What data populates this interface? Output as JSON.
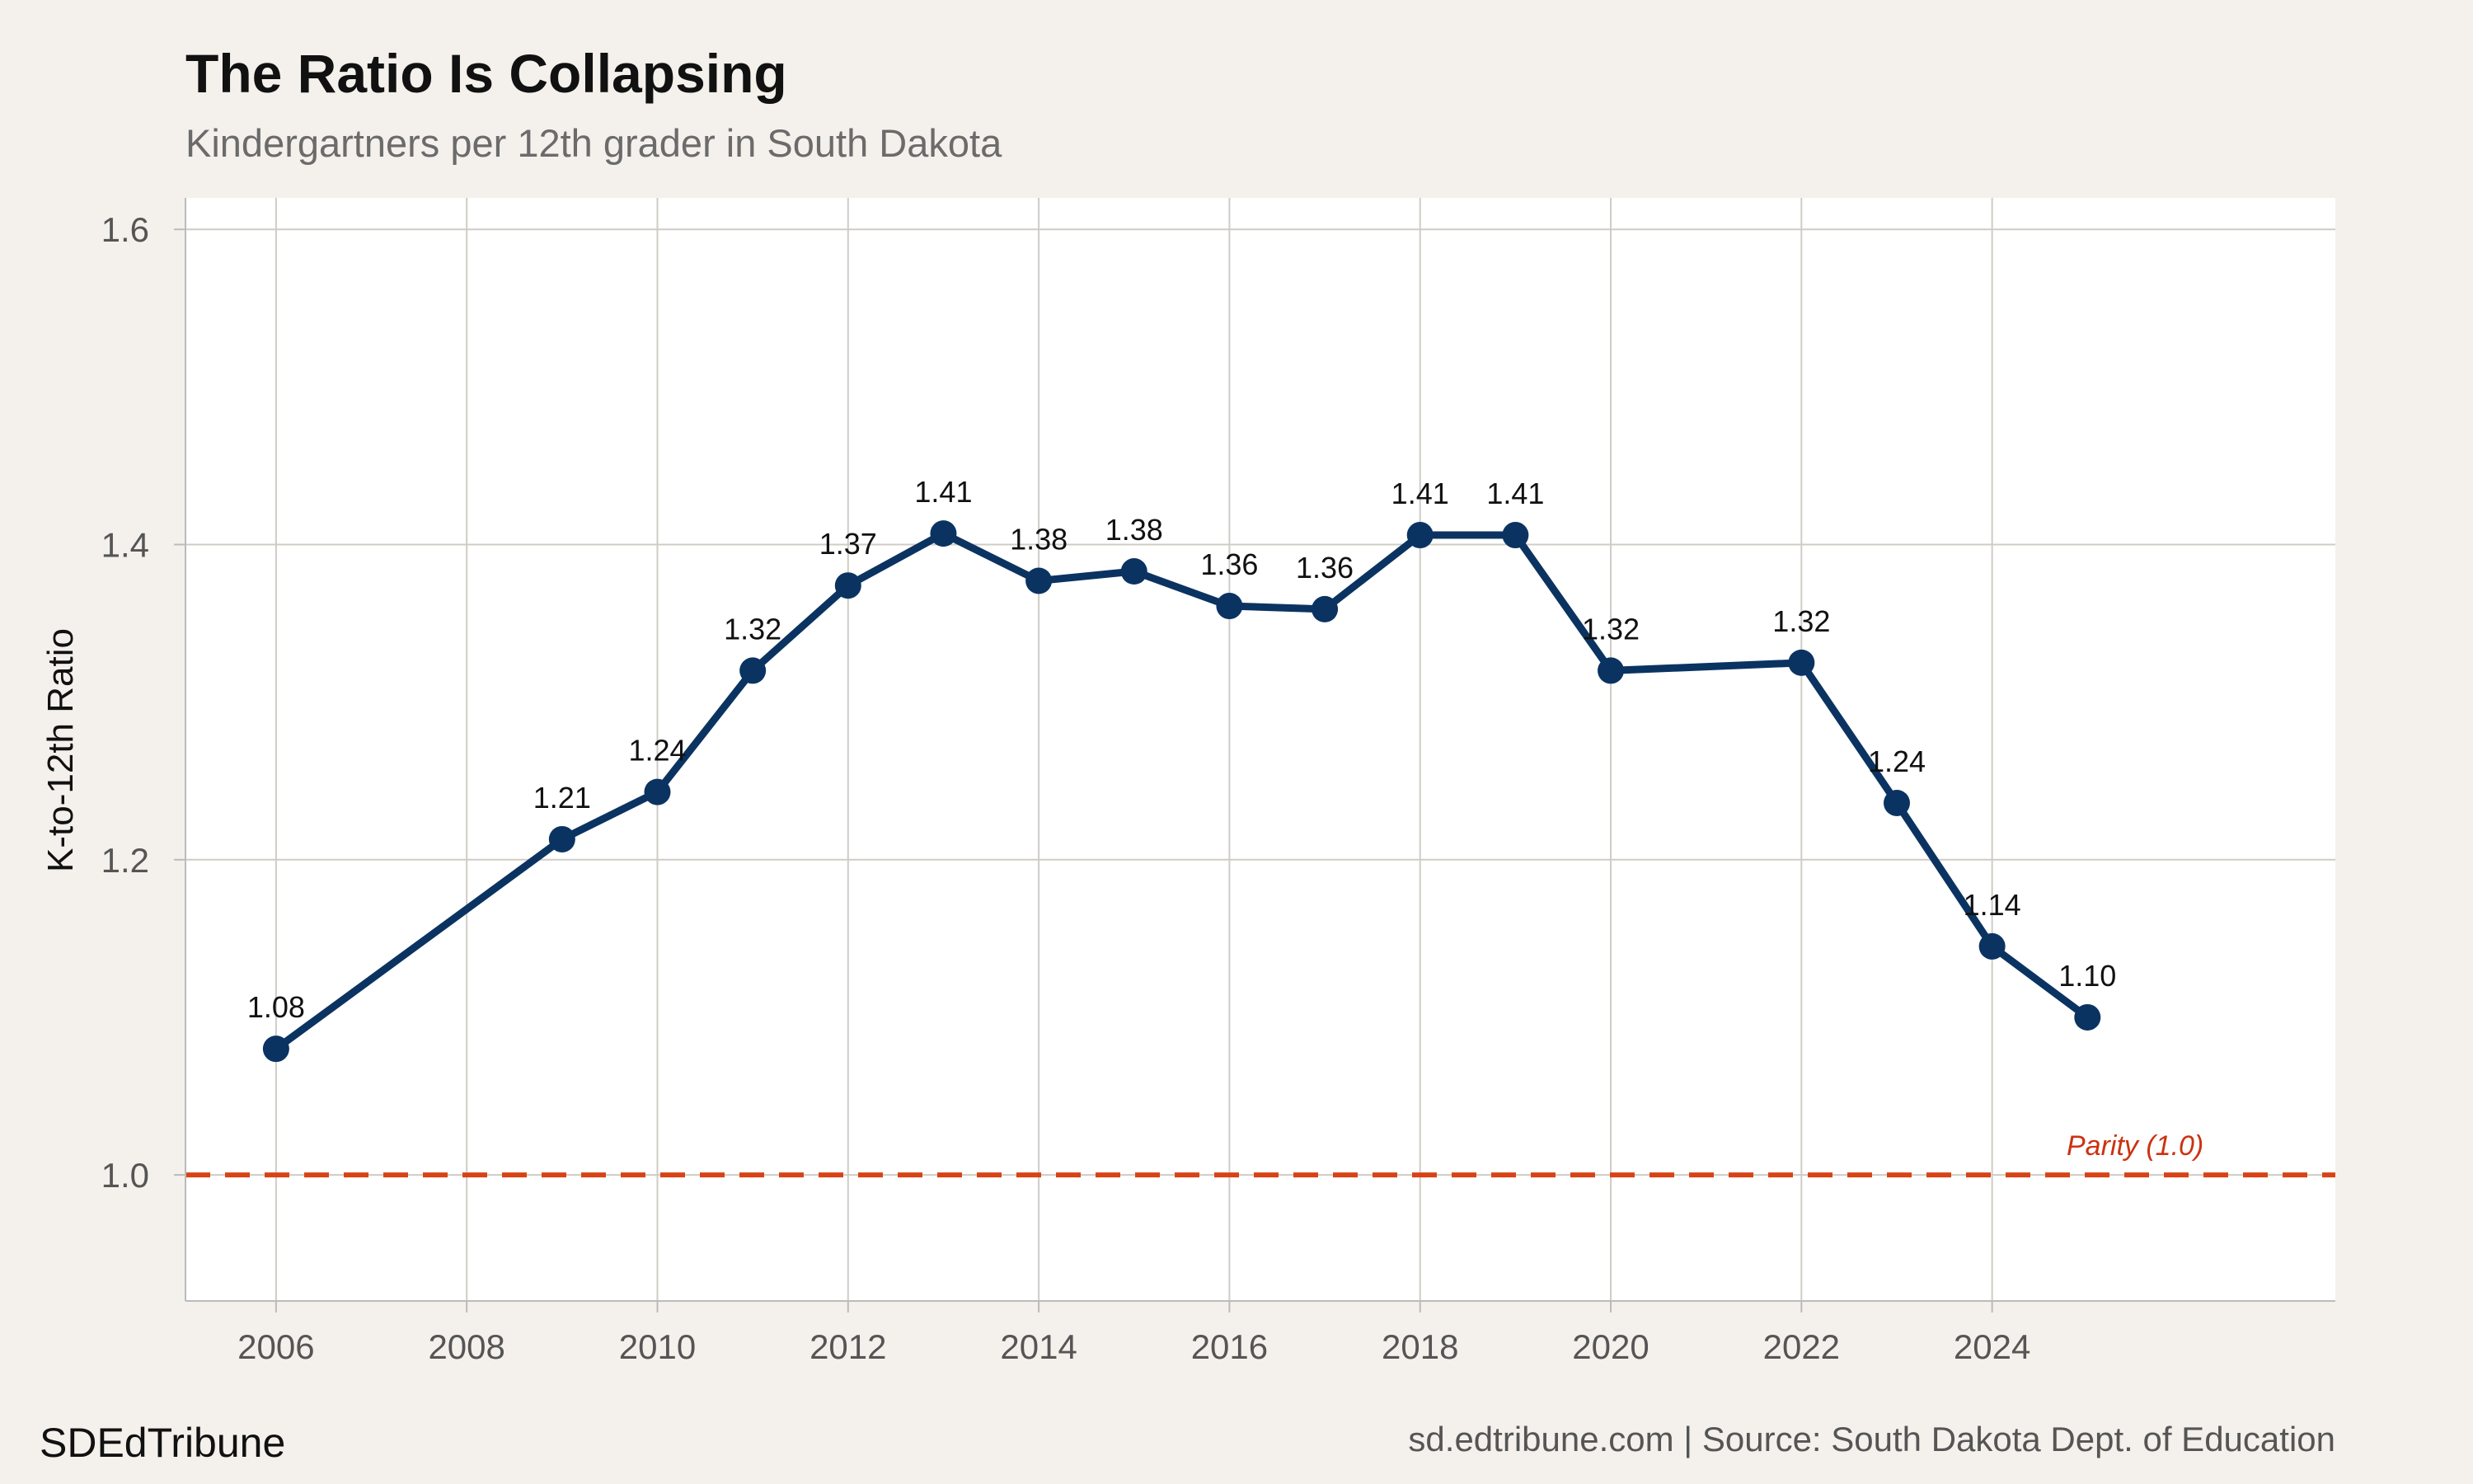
{
  "chart_data": {
    "type": "line",
    "title": "The Ratio Is Collapsing",
    "subtitle": "Kindergartners per 12th grader in South Dakota",
    "xlabel": "",
    "ylabel": "K-to-12th Ratio",
    "x": [
      2006,
      2009,
      2010,
      2011,
      2012,
      2013,
      2014,
      2015,
      2016,
      2017,
      2018,
      2019,
      2020,
      2022,
      2023,
      2024,
      2025
    ],
    "values": [
      1.08,
      1.213,
      1.243,
      1.32,
      1.374,
      1.407,
      1.377,
      1.383,
      1.361,
      1.359,
      1.406,
      1.406,
      1.32,
      1.325,
      1.236,
      1.145,
      1.1
    ],
    "labels": [
      "1.08",
      "1.21",
      "1.24",
      "1.32",
      "1.37",
      "1.41",
      "1.38",
      "1.38",
      "1.36",
      "1.36",
      "1.41",
      "1.41",
      "1.32",
      "1.32",
      "1.24",
      "1.14",
      "1.10"
    ],
    "xlim": [
      2005.05,
      2027.6
    ],
    "ylim": [
      0.92,
      1.62
    ],
    "xticks": [
      2006,
      2008,
      2010,
      2012,
      2014,
      2016,
      2018,
      2020,
      2022,
      2024
    ],
    "yticks": [
      1.0,
      1.2,
      1.4,
      1.6
    ],
    "ytick_labels": [
      "1.0",
      "1.2",
      "1.4",
      "1.6"
    ],
    "reference_line": {
      "value": 1.0,
      "label": "Parity (1.0)",
      "color": "#d84315"
    },
    "series_color": "#0b3361",
    "grid": true,
    "legend": "none"
  },
  "footer": {
    "brand": "SDEdTribune",
    "caption": "sd.edtribune.com | Source: South Dakota Dept. of Education"
  }
}
